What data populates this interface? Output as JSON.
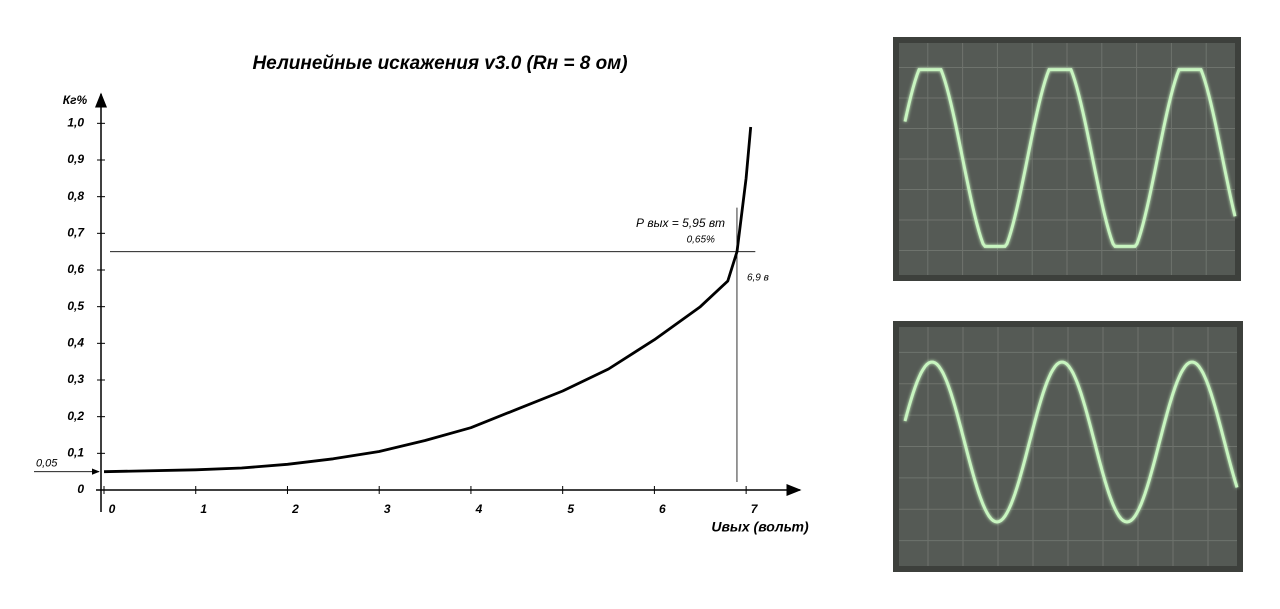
{
  "chart_data": {
    "type": "line",
    "title": "Нелинейные искажения  v3.0   (Rн = 8 ом)",
    "x_label": "Uвых (вольт)",
    "y_label": "Кг%",
    "x": [
      0,
      1,
      1.5,
      2,
      2.5,
      3,
      3.5,
      4,
      4.5,
      5,
      5.5,
      6,
      6.5,
      6.8,
      6.9,
      7.0,
      7.05
    ],
    "values": [
      0.05,
      0.055,
      0.06,
      0.07,
      0.085,
      0.105,
      0.135,
      0.17,
      0.22,
      0.27,
      0.33,
      0.41,
      0.5,
      0.57,
      0.65,
      0.85,
      0.99
    ],
    "color": "#000000",
    "xlim": [
      0,
      7.5
    ],
    "xticks": [
      0,
      1,
      2,
      3,
      4,
      5,
      6,
      7
    ],
    "ylim": [
      0,
      1.05
    ],
    "yticks": [
      0,
      {
        "value": 0.1,
        "label": "0,1"
      },
      {
        "value": 0.2,
        "label": "0,2"
      },
      {
        "value": 0.3,
        "label": "0,3"
      },
      {
        "value": 0.4,
        "label": "0,4"
      },
      {
        "value": 0.5,
        "label": "0,5"
      },
      {
        "value": 0.6,
        "label": "0,6"
      },
      {
        "value": 0.7,
        "label": "0,7"
      },
      {
        "value": 0.8,
        "label": "0,8"
      },
      {
        "value": 0.9,
        "label": "0,9"
      },
      {
        "value": 1.0,
        "label": "1,0"
      }
    ],
    "annotations": {
      "power": {
        "text": "Р вых = 5,95 вт"
      },
      "hline": {
        "text": "0,65%",
        "value": 0.65
      },
      "vline": {
        "text": "6,9 в",
        "value": 6.9
      },
      "start": {
        "text": "0,05",
        "value": 0.05
      }
    }
  }
}
